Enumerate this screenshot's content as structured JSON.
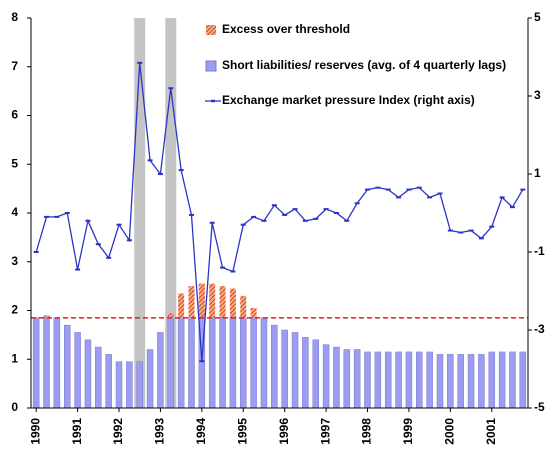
{
  "chart_data": {
    "type": "bar-line",
    "categories": [
      "1990",
      null,
      null,
      null,
      "1991",
      null,
      null,
      null,
      "1992",
      null,
      null,
      null,
      "1993",
      null,
      null,
      null,
      "1994",
      null,
      null,
      null,
      "1995",
      null,
      null,
      null,
      "1996",
      null,
      null,
      null,
      "1997",
      null,
      null,
      null,
      "1998",
      null,
      null,
      null,
      "1999",
      null,
      null,
      null,
      "2000",
      null,
      null,
      null,
      "2001",
      null,
      null,
      null
    ],
    "series": [
      {
        "name": "Excess over threshold",
        "type": "bar",
        "stacked_on": 1,
        "color": "#e0501e",
        "values": [
          null,
          0.05,
          null,
          null,
          null,
          null,
          null,
          null,
          null,
          null,
          null,
          null,
          null,
          0.1,
          0.5,
          0.65,
          0.7,
          0.7,
          0.65,
          0.6,
          0.45,
          0.2,
          null,
          null,
          null,
          null,
          null,
          null,
          null,
          null,
          null,
          null,
          null,
          null,
          null,
          null,
          null,
          null,
          null,
          null,
          null,
          null,
          null,
          null,
          null,
          null,
          null,
          null
        ]
      },
      {
        "name": "Short liabilities/ reserves (avg. of 4 quarterly lags)",
        "type": "bar",
        "color": "#9c9cf0",
        "values": [
          1.85,
          1.85,
          1.85,
          1.7,
          1.55,
          1.4,
          1.25,
          1.1,
          0.95,
          0.95,
          0.95,
          1.2,
          1.55,
          1.85,
          1.85,
          1.85,
          1.85,
          1.85,
          1.85,
          1.85,
          1.85,
          1.85,
          1.85,
          1.7,
          1.6,
          1.55,
          1.45,
          1.4,
          1.3,
          1.25,
          1.2,
          1.2,
          1.15,
          1.15,
          1.15,
          1.15,
          1.15,
          1.15,
          1.15,
          1.1,
          1.1,
          1.1,
          1.1,
          1.1,
          1.15,
          1.15,
          1.15,
          1.15
        ]
      },
      {
        "name": "Exchange market pressure Index (right axis)",
        "type": "line",
        "axis": "y2",
        "color": "#2a35c8",
        "values": [
          -1.0,
          -0.1,
          -0.1,
          0.0,
          -1.45,
          -0.2,
          -0.8,
          -1.15,
          -0.3,
          -0.7,
          3.85,
          1.35,
          1.0,
          3.2,
          1.1,
          -0.05,
          -3.8,
          -0.25,
          -1.4,
          -1.5,
          -0.3,
          -0.1,
          -0.2,
          0.2,
          -0.05,
          0.1,
          -0.2,
          -0.15,
          0.1,
          0.0,
          -0.2,
          0.25,
          0.6,
          0.65,
          0.6,
          0.4,
          0.6,
          0.65,
          0.4,
          0.5,
          -0.45,
          -0.5,
          -0.45,
          -0.65,
          -0.35,
          0.4,
          0.15,
          0.6
        ]
      }
    ],
    "threshold": 1.85,
    "threshold_color": "#e02020",
    "shaded_categories": [
      10,
      13
    ],
    "shade_color": "#c4c4c4",
    "ylim": [
      0,
      8
    ],
    "yticks": [
      0,
      1,
      2,
      3,
      4,
      5,
      6,
      7,
      8
    ],
    "y2lim": [
      -5,
      5
    ],
    "y2ticks": [
      -5,
      -3,
      -1,
      1,
      3,
      5
    ]
  }
}
